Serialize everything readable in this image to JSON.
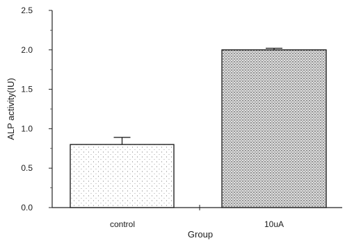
{
  "chart_data": {
    "type": "bar",
    "xlabel": "Group",
    "ylabel": "ALP activity(IU)",
    "categories": [
      "control",
      "10uA"
    ],
    "values": [
      0.8,
      2.0
    ],
    "error_bars": [
      0.09,
      0.02
    ],
    "ylim": [
      0,
      2.5
    ],
    "yticks": [
      "0.0",
      "0.5",
      "1.0",
      "1.5",
      "2.0",
      "2.5"
    ],
    "grid": false,
    "bar_fill": "stippled"
  }
}
